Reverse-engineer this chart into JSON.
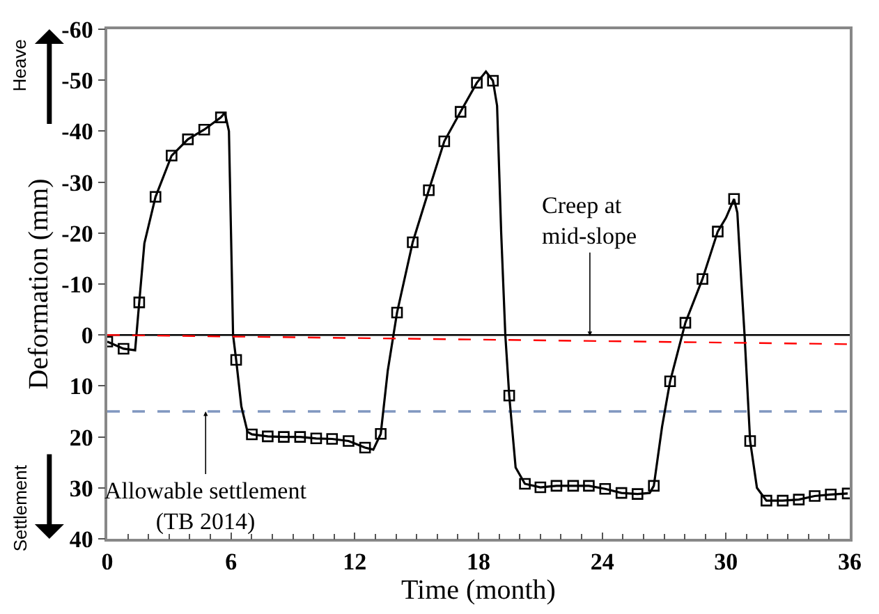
{
  "chart_data": {
    "type": "line",
    "xlabel": "Time (month)",
    "ylabel": "Deformation (mm)",
    "xlim": [
      0,
      36
    ],
    "xticks": [
      0,
      6,
      12,
      18,
      24,
      30,
      36
    ],
    "ylim": [
      40,
      -60
    ],
    "yticks": [
      -60,
      -50,
      -40,
      -30,
      -20,
      -10,
      0,
      10,
      20,
      30,
      40
    ],
    "grid": false,
    "series": [
      {
        "color": "#000000",
        "marker": "none",
        "line_style": "solid",
        "x": [
          0,
          0.79,
          1.35,
          1.55,
          1.8,
          2.34,
          3.12,
          3.91,
          4.7,
          5.51,
          5.7,
          5.9,
          6.0,
          6.1,
          6.25,
          6.5,
          6.8,
          7.01,
          7.78,
          8.56,
          9.35,
          10.13,
          10.9,
          11.7,
          12.5,
          12.9,
          13.26,
          13.6,
          14.05,
          14.81,
          15.59,
          16.34,
          17.13,
          17.92,
          18.36,
          18.7,
          18.9,
          19.1,
          19.3,
          19.49,
          19.8,
          20.25,
          21.0,
          21.78,
          22.59,
          23.35,
          24.14,
          24.93,
          25.71,
          26.3,
          26.5,
          26.9,
          27.29,
          28.03,
          28.86,
          29.6,
          30.0,
          30.39,
          30.55,
          30.75,
          30.9,
          31.17,
          31.5,
          31.96,
          32.75,
          33.53,
          34.3,
          35.08,
          35.9
        ],
        "values": [
          1.3,
          2.7,
          3.0,
          -6.4,
          -18,
          -27.1,
          -35.2,
          -38.4,
          -40.3,
          -42.7,
          -43.6,
          -40,
          -20,
          0,
          4.9,
          14,
          19,
          19.5,
          19.9,
          20.0,
          20.0,
          20.3,
          20.4,
          20.8,
          22.1,
          22.5,
          19.4,
          7,
          -4.4,
          -18.2,
          -28.4,
          -38.0,
          -43.8,
          -49.5,
          -51.7,
          -49.9,
          -45,
          -20,
          0,
          11.9,
          26,
          29.2,
          29.9,
          29.6,
          29.6,
          29.6,
          30.2,
          31.0,
          31.2,
          31.0,
          29.6,
          18,
          9.1,
          -2.4,
          -11.0,
          -20.3,
          -23,
          -26.7,
          -24,
          -10,
          0,
          20.8,
          30,
          32.5,
          32.5,
          32.3,
          31.6,
          31.3,
          31.1
        ]
      },
      {
        "type": "scatter",
        "color": "#000000",
        "marker": "square",
        "x": [
          0,
          0.79,
          1.55,
          2.34,
          3.12,
          3.91,
          4.7,
          5.51,
          6.25,
          7.01,
          7.78,
          8.56,
          9.35,
          10.13,
          10.9,
          11.7,
          12.5,
          13.26,
          14.05,
          14.81,
          15.59,
          16.34,
          17.13,
          17.92,
          18.7,
          19.49,
          20.25,
          21.0,
          21.78,
          22.59,
          23.35,
          24.14,
          24.93,
          25.71,
          26.5,
          27.29,
          28.03,
          28.86,
          29.6,
          30.39,
          31.17,
          31.96,
          32.75,
          33.53,
          34.3,
          35.08,
          35.9
        ],
        "values": [
          1.3,
          2.7,
          -6.4,
          -27.1,
          -35.2,
          -38.4,
          -40.3,
          -42.7,
          4.9,
          19.5,
          19.9,
          20.0,
          20.0,
          20.3,
          20.4,
          20.8,
          22.1,
          19.4,
          -4.4,
          -18.2,
          -28.4,
          -38.0,
          -43.8,
          -49.5,
          -49.9,
          11.9,
          29.2,
          29.9,
          29.6,
          29.6,
          29.6,
          30.2,
          31.0,
          31.2,
          29.6,
          9.1,
          -2.4,
          -11.0,
          -20.3,
          -26.7,
          20.8,
          32.5,
          32.5,
          32.3,
          31.6,
          31.3,
          31.1
        ]
      },
      {
        "color": "#ff0000",
        "marker": "none",
        "line_style": "dashed",
        "x": [
          0,
          36
        ],
        "values": [
          0,
          1.8
        ]
      }
    ],
    "ref_lines": [
      {
        "axis": "y",
        "value": 0,
        "color": "#000000",
        "line_style": "solid"
      },
      {
        "axis": "y",
        "value": 15,
        "color": "#8097c0",
        "line_style": "dashed"
      }
    ],
    "annotations": [
      {
        "text": "Creep at\nmid-slope",
        "x": 23.4,
        "y": 0.2
      },
      {
        "text": "Allowable settlement\n(TB 2014)",
        "x": 4.77,
        "y": 15
      },
      "Heave",
      "Settlement"
    ]
  }
}
